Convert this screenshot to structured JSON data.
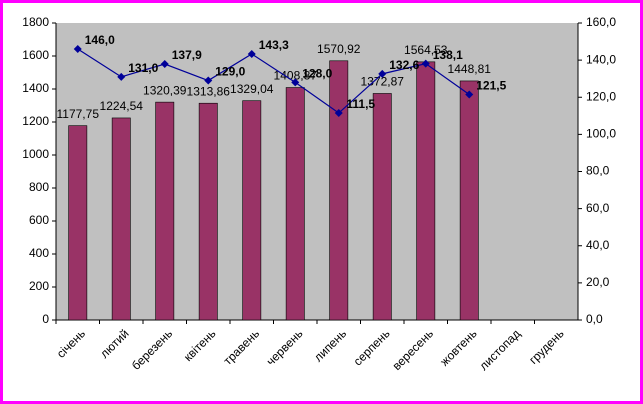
{
  "chart_data": {
    "type": "bar_line",
    "categories": [
      "січень",
      "лютий",
      "березень",
      "квітень",
      "травень",
      "червень",
      "липень",
      "серпень",
      "вересень",
      "жовтень",
      "листопад",
      "грудень"
    ],
    "series": [
      {
        "type": "bar",
        "color": "#993366",
        "values": [
          1177.75,
          1224.54,
          1320.39,
          1313.86,
          1329.04,
          1408.87,
          1570.92,
          1372.87,
          1564.53,
          1448.81,
          null,
          null
        ],
        "value_labels": [
          "1177,75",
          "1224,54",
          "1320,39",
          "1313,86",
          "1329,04",
          "1408,87",
          "1570,92",
          "1372,87",
          "1564,53",
          "1448,81",
          null,
          null
        ]
      },
      {
        "type": "line",
        "axis": "y2",
        "color": "#000099",
        "values": [
          146.0,
          131.0,
          137.9,
          129.0,
          143.3,
          128.0,
          111.5,
          132.6,
          138.1,
          121.5,
          null,
          null
        ],
        "value_labels": [
          "146,0",
          "131,0",
          "137,9",
          "129,0",
          "143,3",
          "128,0",
          "111,5",
          "132,6",
          "138,1",
          "121,5",
          null,
          null
        ]
      }
    ],
    "ylim": [
      0,
      1800
    ],
    "yticks": [
      0,
      200,
      400,
      600,
      800,
      1000,
      1200,
      1400,
      1600,
      1800
    ],
    "y2lim": [
      0,
      160
    ],
    "y2ticks": [
      {
        "value": 0,
        "label": "0,0"
      },
      {
        "value": 20,
        "label": "20,0"
      },
      {
        "value": 40,
        "label": "40,0"
      },
      {
        "value": 60,
        "label": "60,0"
      },
      {
        "value": 80,
        "label": "80,0"
      },
      {
        "value": 100,
        "label": "100,0"
      },
      {
        "value": 120,
        "label": "120,0"
      },
      {
        "value": 140,
        "label": "140,0"
      },
      {
        "value": 160,
        "label": "160,0"
      }
    ]
  }
}
